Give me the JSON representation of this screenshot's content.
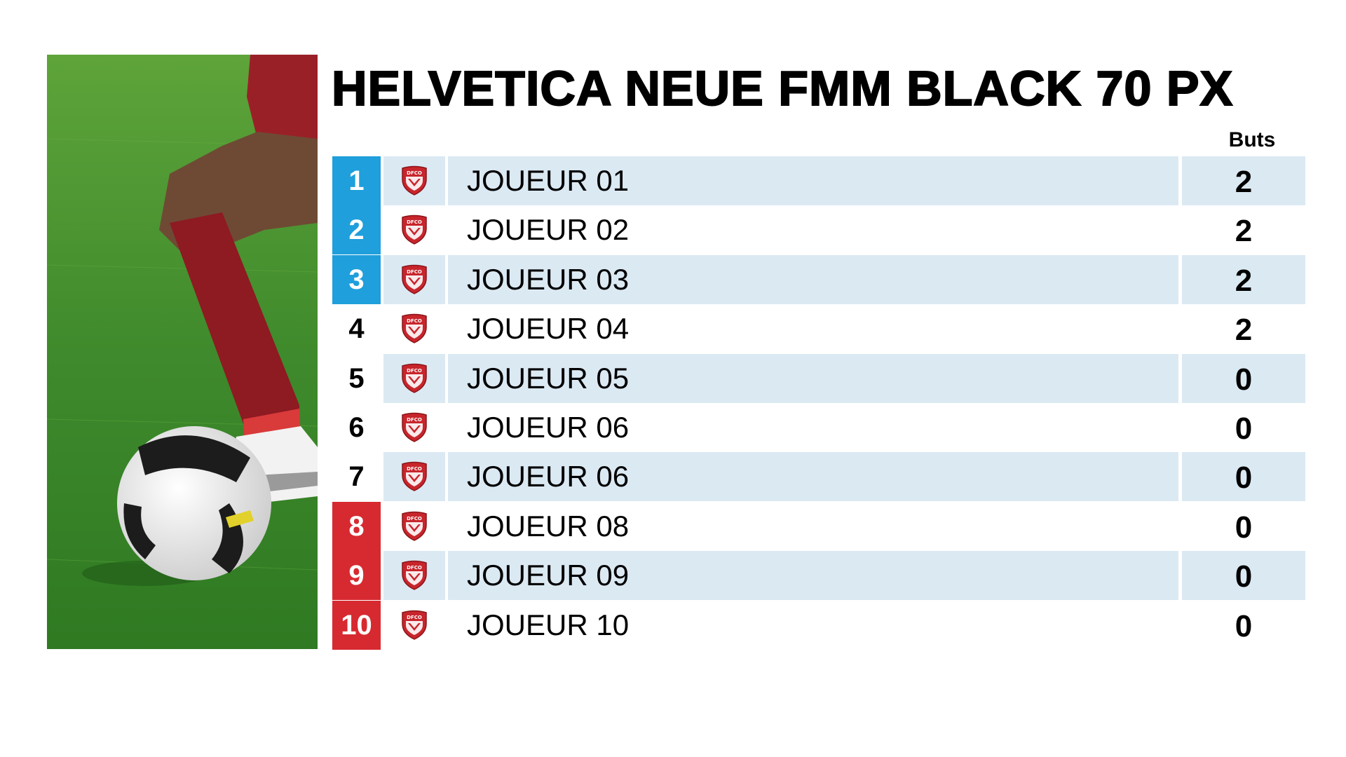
{
  "title": "HELVETICA NEUE FMM BLACK 70 PX",
  "column_header": "Buts",
  "club_logo_text": "DFCO",
  "colors": {
    "top_rank": "#1f9fdb",
    "bottom_rank": "#d62a30",
    "row_shade": "#dbe9f3",
    "shield": "#c8252c"
  },
  "icons": {
    "photo": "football-player-photo",
    "club": "dfco-shield-icon"
  },
  "rows": [
    {
      "rank": "1",
      "name": "JOUEUR 01",
      "goals": "2",
      "rank_style": "top"
    },
    {
      "rank": "2",
      "name": "JOUEUR 02",
      "goals": "2",
      "rank_style": "top"
    },
    {
      "rank": "3",
      "name": "JOUEUR 03",
      "goals": "2",
      "rank_style": "top"
    },
    {
      "rank": "4",
      "name": "JOUEUR 04",
      "goals": "2",
      "rank_style": "none"
    },
    {
      "rank": "5",
      "name": "JOUEUR 05",
      "goals": "0",
      "rank_style": "none"
    },
    {
      "rank": "6",
      "name": "JOUEUR 06",
      "goals": "0",
      "rank_style": "none"
    },
    {
      "rank": "7",
      "name": "JOUEUR 06",
      "goals": "0",
      "rank_style": "none"
    },
    {
      "rank": "8",
      "name": "JOUEUR 08",
      "goals": "0",
      "rank_style": "bottom"
    },
    {
      "rank": "9",
      "name": "JOUEUR 09",
      "goals": "0",
      "rank_style": "bottom"
    },
    {
      "rank": "10",
      "name": "JOUEUR 10",
      "goals": "0",
      "rank_style": "bottom"
    }
  ]
}
